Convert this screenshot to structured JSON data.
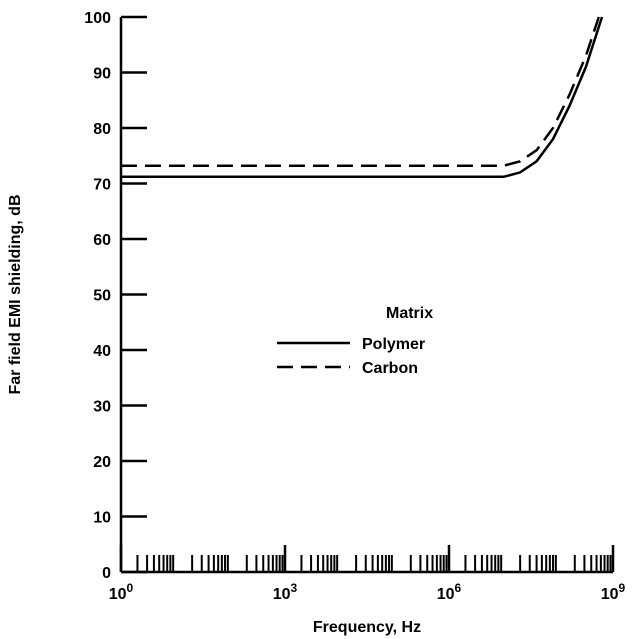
{
  "chart_data": {
    "type": "line",
    "xlabel": "Frequency, Hz",
    "ylabel": "Far field EMI shielding, dB",
    "x_scale": "log10",
    "xlim": [
      1,
      1000000000
    ],
    "ylim": [
      0,
      100
    ],
    "x_ticks": [
      {
        "base": "10",
        "exp": "0",
        "value": 1
      },
      {
        "base": "10",
        "exp": "3",
        "value": 1000
      },
      {
        "base": "10",
        "exp": "6",
        "value": 1000000
      },
      {
        "base": "10",
        "exp": "9",
        "value": 1000000000
      }
    ],
    "y_ticks": [
      "0",
      "10",
      "20",
      "30",
      "40",
      "50",
      "60",
      "70",
      "80",
      "90",
      "100"
    ],
    "grid": false,
    "legend": {
      "title": "Matrix",
      "placement": "center-right",
      "entries": [
        {
          "label": "Polymer",
          "style": "solid"
        },
        {
          "label": "Carbon",
          "style": "dashed"
        }
      ]
    },
    "series": [
      {
        "name": "Polymer",
        "style": "solid",
        "points": [
          {
            "x": 1,
            "y": 71.2
          },
          {
            "x": 10000000,
            "y": 71.2
          },
          {
            "x": 20000000,
            "y": 72
          },
          {
            "x": 40000000,
            "y": 74
          },
          {
            "x": 80000000,
            "y": 78
          },
          {
            "x": 160000000,
            "y": 84
          },
          {
            "x": 320000000,
            "y": 91
          },
          {
            "x": 630000000,
            "y": 100
          }
        ]
      },
      {
        "name": "Carbon",
        "style": "dashed",
        "points": [
          {
            "x": 1,
            "y": 73.2
          },
          {
            "x": 10000000,
            "y": 73.2
          },
          {
            "x": 20000000,
            "y": 74
          },
          {
            "x": 40000000,
            "y": 76
          },
          {
            "x": 80000000,
            "y": 80
          },
          {
            "x": 160000000,
            "y": 86
          },
          {
            "x": 320000000,
            "y": 93
          },
          {
            "x": 550000000,
            "y": 100
          }
        ]
      }
    ]
  }
}
